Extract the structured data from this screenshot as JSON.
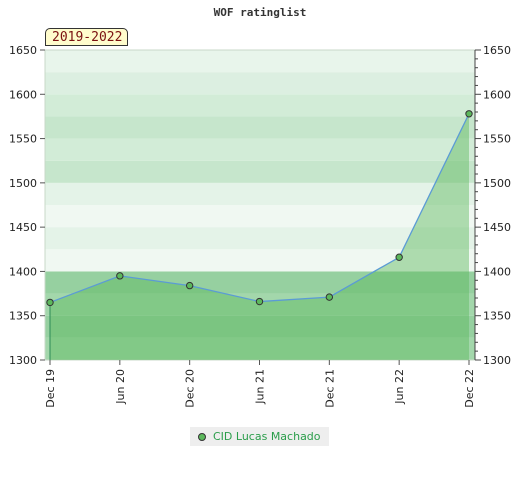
{
  "title": "WOF ratinglist",
  "period_label": "2019-2022",
  "chart_data": {
    "type": "area",
    "title": "WOF ratinglist",
    "categories": [
      "Dec 19",
      "Jun 20",
      "Dec 20",
      "Jun 21",
      "Dec 21",
      "Jun 22",
      "Dec 22"
    ],
    "series": [
      {
        "name": "CID Lucas Machado",
        "values": [
          1365,
          1395,
          1384,
          1366,
          1371,
          1416,
          1578
        ]
      }
    ],
    "ylim": [
      1300,
      1650
    ],
    "yticks": [
      1300,
      1350,
      1400,
      1450,
      1500,
      1550,
      1600,
      1650
    ],
    "grid": true,
    "legend_position": "bottom",
    "colors": {
      "line": "#5b9bd5",
      "fill": "#5cb85c",
      "marker": "#5cb85c"
    }
  }
}
